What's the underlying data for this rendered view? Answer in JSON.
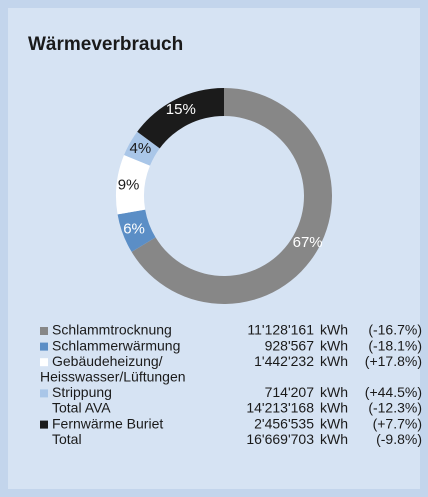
{
  "chart_data": {
    "type": "pie",
    "donut": true,
    "title": "Wärmeverbrauch",
    "slices": [
      {
        "color": "#878787",
        "value": 67,
        "value_label": "67%"
      },
      {
        "color": "#5b8ec6",
        "value": 6,
        "value_label": "6%"
      },
      {
        "color": "#ffffff",
        "value": 9,
        "value_label": "9%"
      },
      {
        "color": "#a9c6e8",
        "value": 4,
        "value_label": "4%"
      },
      {
        "color": "#1b1b1b",
        "value": 15,
        "value_label": "15%"
      }
    ],
    "legend_table": [
      {
        "name": "Schlammtrocknung",
        "color": "#878787",
        "value": "11'128'161",
        "unit": "kWh",
        "change": "(-16.7%)"
      },
      {
        "name": "Schlammerwärmung",
        "color": "#5b8ec6",
        "value": "928'567",
        "unit": "kWh",
        "change": "(-18.1%)"
      },
      {
        "name": "Gebäudeheizung/",
        "name2": "Heisswasser/Lüftungen",
        "color": "#ffffff",
        "value": "1'442'232",
        "unit": "kWh",
        "change": "(+17.8%)"
      },
      {
        "name": "Strippung",
        "color": "#a9c6e8",
        "value": "714'207",
        "unit": "kWh",
        "change": "(+44.5%)"
      },
      {
        "name": "Total AVA",
        "value": "14'213'168",
        "unit": "kWh",
        "change": "(-12.3%)"
      },
      {
        "name": "Fernwärme Buriet",
        "color": "#1b1b1b",
        "value": "2'456'535",
        "unit": "kWh",
        "change": "(+7.7%)"
      },
      {
        "name": "Total",
        "value": "16'669'703",
        "unit": "kWh",
        "change": "(-9.8%)"
      }
    ]
  }
}
